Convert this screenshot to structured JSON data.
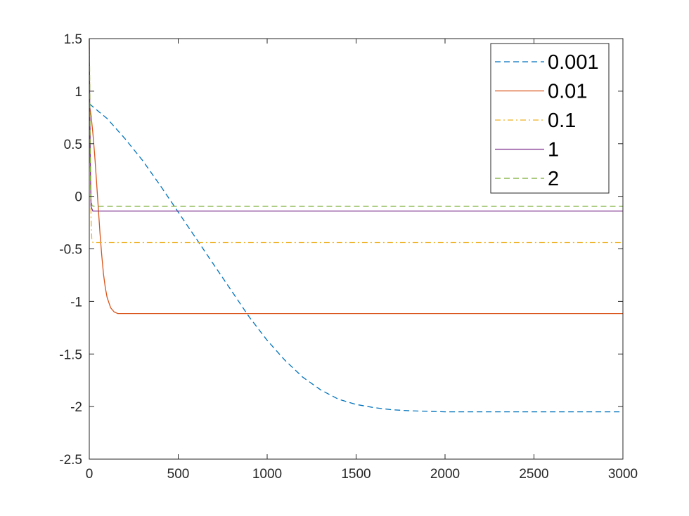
{
  "chart_data": {
    "type": "line",
    "title": "",
    "xlabel": "",
    "ylabel": "",
    "xlim": [
      0,
      3000
    ],
    "ylim": [
      -2.5,
      1.5
    ],
    "xticks": [
      0,
      500,
      1000,
      1500,
      2000,
      2500,
      3000
    ],
    "yticks": [
      -2.5,
      -2,
      -1.5,
      -1,
      -0.5,
      0,
      0.5,
      1,
      1.5
    ],
    "xtick_labels": [
      "0",
      "500",
      "1000",
      "1500",
      "2000",
      "2500",
      "3000"
    ],
    "ytick_labels": [
      "-2.5",
      "-2",
      "-1.5",
      "-1",
      "-0.5",
      "0",
      "0.5",
      "1",
      "1.5"
    ],
    "grid": false,
    "legend_position": "top-right",
    "series": [
      {
        "name": "0.001",
        "color": "#0072BD",
        "line_style": "dashed",
        "x": [
          0,
          100,
          200,
          300,
          400,
          500,
          600,
          700,
          800,
          900,
          1000,
          1100,
          1200,
          1300,
          1400,
          1500,
          1600,
          1700,
          1800,
          1900,
          2000,
          2100,
          2200,
          2300,
          2400,
          2500,
          2700,
          3000
        ],
        "y": [
          0.88,
          0.74,
          0.55,
          0.34,
          0.1,
          -0.15,
          -0.4,
          -0.65,
          -0.9,
          -1.15,
          -1.37,
          -1.56,
          -1.72,
          -1.84,
          -1.93,
          -1.98,
          -2.01,
          -2.03,
          -2.04,
          -2.045,
          -2.05,
          -2.05,
          -2.05,
          -2.05,
          -2.05,
          -2.05,
          -2.05,
          -2.05
        ]
      },
      {
        "name": "0.01",
        "color": "#D95319",
        "line_style": "solid",
        "x": [
          0,
          10,
          20,
          30,
          40,
          50,
          60,
          70,
          80,
          90,
          100,
          120,
          140,
          160,
          180,
          200,
          250,
          300,
          500,
          1000,
          2000,
          3000
        ],
        "y": [
          0.88,
          0.77,
          0.6,
          0.4,
          0.16,
          -0.1,
          -0.35,
          -0.56,
          -0.74,
          -0.87,
          -0.96,
          -1.06,
          -1.1,
          -1.115,
          -1.115,
          -1.115,
          -1.115,
          -1.115,
          -1.115,
          -1.115,
          -1.115,
          -1.115
        ]
      },
      {
        "name": "0.1",
        "color": "#EDB120",
        "line_style": "dash-dot",
        "x": [
          0,
          3,
          6,
          10,
          14,
          20,
          30,
          50,
          100,
          500,
          1000,
          2000,
          3000
        ],
        "y": [
          1.45,
          0.9,
          0.3,
          -0.2,
          -0.4,
          -0.44,
          -0.44,
          -0.44,
          -0.44,
          -0.44,
          -0.44,
          -0.44,
          -0.44
        ]
      },
      {
        "name": "1",
        "color": "#7E2F8E",
        "line_style": "solid",
        "x": [
          0,
          2,
          5,
          10,
          20,
          30,
          100,
          500,
          1000,
          2000,
          3000
        ],
        "y": [
          1.5,
          1.0,
          0.4,
          -0.1,
          -0.14,
          -0.14,
          -0.14,
          -0.14,
          -0.14,
          -0.14,
          -0.14
        ]
      },
      {
        "name": "2",
        "color": "#77AC30",
        "line_style": "dashed",
        "x": [
          0,
          2,
          4,
          8,
          15,
          30,
          100,
          500,
          1000,
          2000,
          3000
        ],
        "y": [
          1.5,
          1.2,
          0.6,
          0.0,
          -0.09,
          -0.095,
          -0.095,
          -0.095,
          -0.095,
          -0.095,
          -0.095
        ]
      }
    ]
  }
}
